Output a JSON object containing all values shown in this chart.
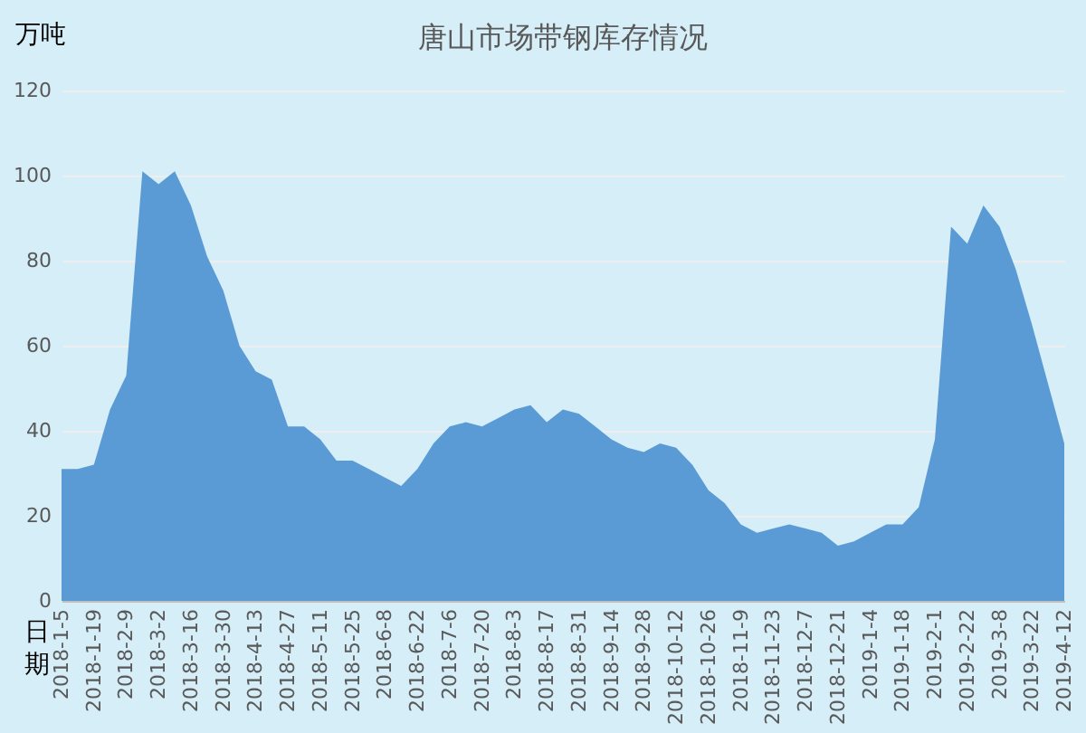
{
  "chart_data": {
    "type": "area",
    "title": "唐山市场带钢库存情况",
    "xlabel": "日期",
    "ylabel": "万吨",
    "categories": [
      "2018-1-5",
      null,
      "2018-1-19",
      null,
      "2018-2-9",
      null,
      "2018-3-2",
      null,
      "2018-3-16",
      null,
      "2018-3-30",
      null,
      "2018-4-13",
      null,
      "2018-4-27",
      null,
      "2018-5-11",
      null,
      "2018-5-25",
      null,
      "2018-6-8",
      null,
      "2018-6-22",
      null,
      "2018-7-6",
      null,
      "2018-7-20",
      null,
      "2018-8-3",
      null,
      "2018-8-17",
      null,
      "2018-8-31",
      null,
      "2018-9-14",
      null,
      "2018-9-28",
      null,
      "2018-10-12",
      null,
      "2018-10-26",
      null,
      "2018-11-9",
      null,
      "2018-11-23",
      null,
      "2018-12-7",
      null,
      "2018-12-21",
      null,
      "2019-1-4",
      null,
      "2019-1-18",
      null,
      "2019-2-1",
      null,
      "2019-2-22",
      null,
      "2019-3-8",
      null,
      "2019-3-22",
      null,
      "2019-4-12"
    ],
    "values": [
      31,
      31,
      32,
      45,
      53,
      101,
      98,
      101,
      93,
      81,
      73,
      60,
      54,
      52,
      41,
      41,
      38,
      33,
      33,
      31,
      29,
      27,
      31,
      37,
      41,
      42,
      41,
      43,
      45,
      46,
      42,
      45,
      44,
      41,
      38,
      36,
      35,
      37,
      36,
      32,
      26,
      23,
      18,
      16,
      17,
      18,
      17,
      16,
      13,
      14,
      16,
      18,
      18,
      22,
      38,
      88,
      84,
      93,
      88,
      78,
      65,
      51,
      37
    ],
    "color": "#5b9bd5",
    "ylim": [
      0,
      120
    ],
    "yticks": [
      0,
      20,
      40,
      60,
      80,
      100,
      120
    ],
    "grid": "y"
  }
}
